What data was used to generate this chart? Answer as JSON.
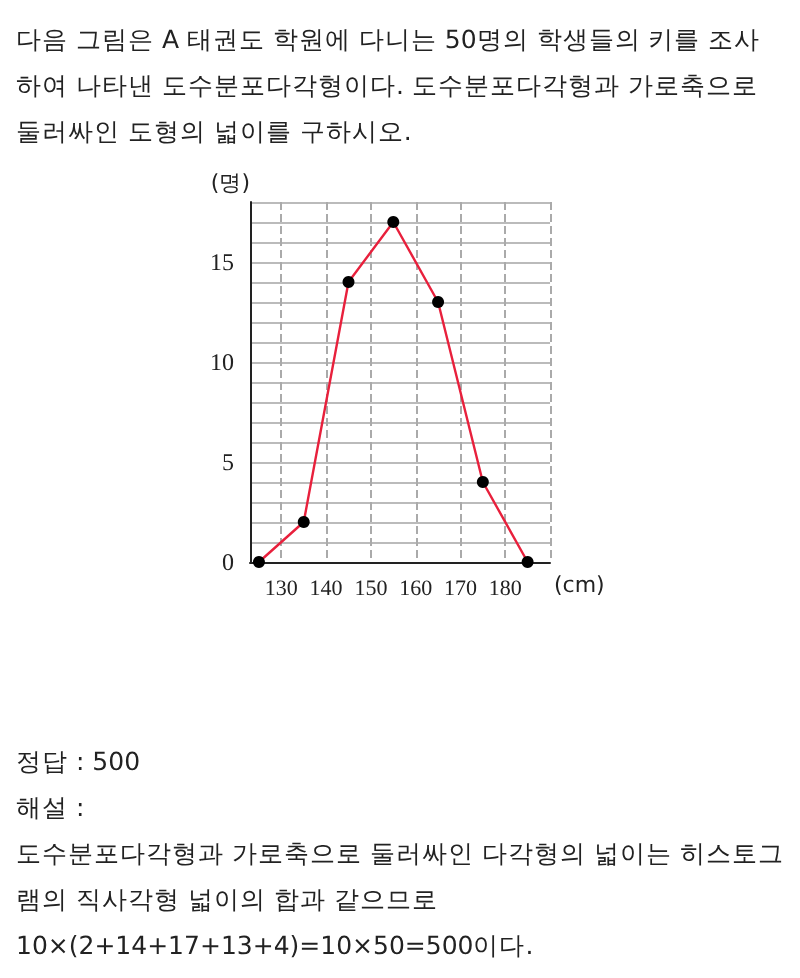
{
  "chart_data": {
    "type": "line",
    "title": "다음 그림은 A 태권도 학원에 다니는 50명의 학생들의 키를 조사하여 나타낸 도수분포다각형이다. 도수분포다각형과 가로축으로 둘러싸인 도형의 넓이를 구하시오.",
    "xlabel": "(cm)",
    "ylabel": "(명)",
    "x": [
      125,
      135,
      145,
      155,
      165,
      175,
      185
    ],
    "series": [
      {
        "color": "#e8203c",
        "values": [
          0,
          2,
          14,
          17,
          13,
          4,
          0
        ]
      }
    ],
    "xlim": [
      123,
      190
    ],
    "xticks": [
      130,
      140,
      150,
      160,
      170,
      180,
      {
        "value": 190,
        "label": null
      }
    ],
    "ylim": [
      0,
      18
    ],
    "yticks": [
      0,
      {
        "value": 1,
        "label": null
      },
      {
        "value": 2,
        "label": null
      },
      {
        "value": 3,
        "label": null
      },
      {
        "value": 4,
        "label": null
      },
      5,
      {
        "value": 6,
        "label": null
      },
      {
        "value": 7,
        "label": null
      },
      {
        "value": 8,
        "label": null
      },
      {
        "value": 9,
        "label": null
      },
      10,
      {
        "value": 11,
        "label": null
      },
      {
        "value": 12,
        "label": null
      },
      {
        "value": 13,
        "label": null
      },
      {
        "value": 14,
        "label": null
      },
      15,
      {
        "value": 16,
        "label": null
      },
      {
        "value": 17,
        "label": null
      },
      {
        "value": 18,
        "label": null
      }
    ],
    "grid": true,
    "marker": "circle",
    "line_style": "solid",
    "annotations": [
      "정답 : 500",
      "해설 :",
      "도수분포다각형과 가로축으로 둘러싸인 다각형의 넓이는 히스토그램의 직사각형 넓이의 합과 같으므로",
      "10×(2+14+17+13+4)=10×50=500이다."
    ]
  }
}
